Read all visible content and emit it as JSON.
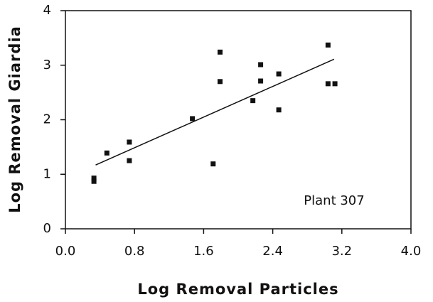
{
  "chart_data": {
    "type": "scatter",
    "x_label": "Log Removal Particles",
    "y_label": "Log Removal Giardia",
    "annotation": "Plant 307",
    "x": [
      0.33,
      0.33,
      0.48,
      0.74,
      0.74,
      1.47,
      1.71,
      1.79,
      1.79,
      2.17,
      2.26,
      2.26,
      2.47,
      2.47,
      3.04,
      3.04,
      3.12
    ],
    "values": [
      0.93,
      0.87,
      1.39,
      1.59,
      1.25,
      2.02,
      1.19,
      3.24,
      2.7,
      2.35,
      3.01,
      2.71,
      2.84,
      2.18,
      3.37,
      2.66,
      2.66
    ],
    "color": "#111111",
    "trend_line": {
      "x": [
        0.35,
        3.11
      ],
      "values": [
        1.17,
        3.11
      ]
    },
    "xlim": [
      0,
      4
    ],
    "ylim": [
      0,
      4
    ],
    "xticks": [
      {
        "value": 0,
        "label": "0.0"
      },
      0.8,
      1.6,
      2.4,
      3.2,
      {
        "value": 4,
        "label": "4.0"
      }
    ],
    "yticks": [
      0,
      1,
      2,
      3,
      4
    ]
  }
}
